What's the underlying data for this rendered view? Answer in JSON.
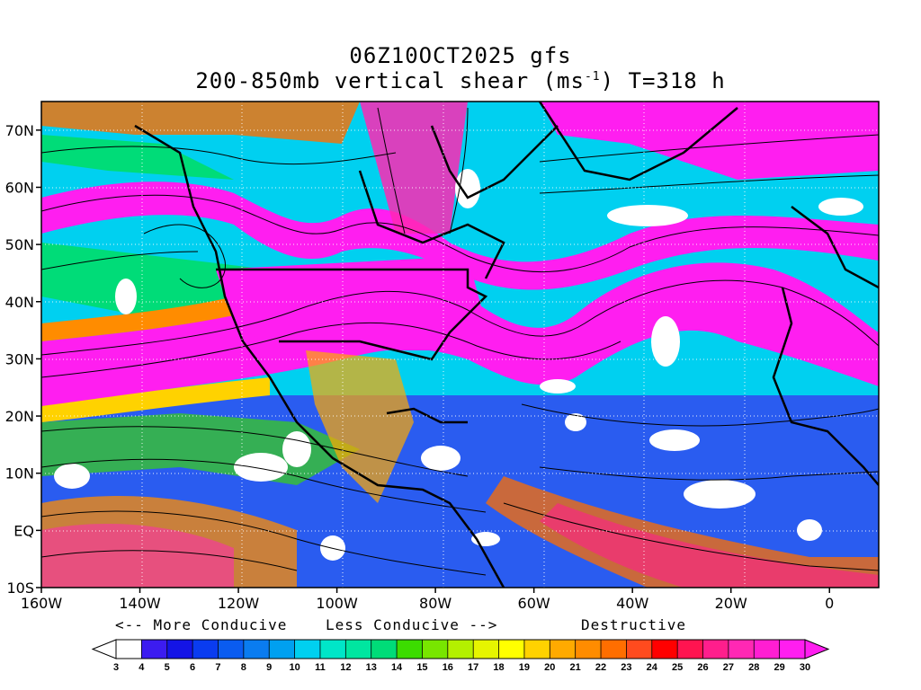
{
  "title": {
    "line1": "06Z10OCT2025 gfs",
    "line2_prefix": "200-850mb vertical shear (ms",
    "line2_sup": "-1",
    "line2_suffix": ") T=318 h"
  },
  "map": {
    "lon_range": [
      -160,
      10
    ],
    "lat_range": [
      -10,
      75
    ],
    "x_ticks": [
      {
        "lon": -160,
        "label": "160W"
      },
      {
        "lon": -140,
        "label": "140W"
      },
      {
        "lon": -120,
        "label": "120W"
      },
      {
        "lon": -100,
        "label": "100W"
      },
      {
        "lon": -80,
        "label": "80W"
      },
      {
        "lon": -60,
        "label": "60W"
      },
      {
        "lon": -40,
        "label": "40W"
      },
      {
        "lon": -20,
        "label": "20W"
      },
      {
        "lon": 0,
        "label": "0"
      }
    ],
    "y_ticks": [
      {
        "lat": 70,
        "label": "70N"
      },
      {
        "lat": 60,
        "label": "60N"
      },
      {
        "lat": 50,
        "label": "50N"
      },
      {
        "lat": 40,
        "label": "40N"
      },
      {
        "lat": 30,
        "label": "30N"
      },
      {
        "lat": 20,
        "label": "20N"
      },
      {
        "lat": 10,
        "label": "10N"
      },
      {
        "lat": 0,
        "label": "EQ"
      },
      {
        "lat": -10,
        "label": "10S"
      }
    ]
  },
  "conducive_labels": {
    "more": "<-- More Conducive",
    "less": "Less Conducive -->",
    "destructive": "Destructive"
  },
  "colorbar": {
    "labels": [
      "3",
      "4",
      "5",
      "6",
      "7",
      "8",
      "9",
      "10",
      "11",
      "12",
      "13",
      "14",
      "15",
      "16",
      "17",
      "18",
      "19",
      "20",
      "21",
      "22",
      "23",
      "24",
      "25",
      "26",
      "27",
      "28",
      "29",
      "30"
    ],
    "colors": [
      "#ffffff",
      "#3c1cf0",
      "#1414e6",
      "#0a3cf0",
      "#0a5cf0",
      "#0a7cf0",
      "#00a0f0",
      "#00d0f0",
      "#00e6c8",
      "#00e6a0",
      "#00dc78",
      "#3cdc00",
      "#78e600",
      "#b4f000",
      "#e6f500",
      "#ffff00",
      "#ffd200",
      "#ffaa00",
      "#ff8c00",
      "#ff6e00",
      "#ff4b1e",
      "#ff0000",
      "#ff1450",
      "#ff1e8c",
      "#ff28b4",
      "#ff1ed2",
      "#ff1ef0"
    ]
  }
}
